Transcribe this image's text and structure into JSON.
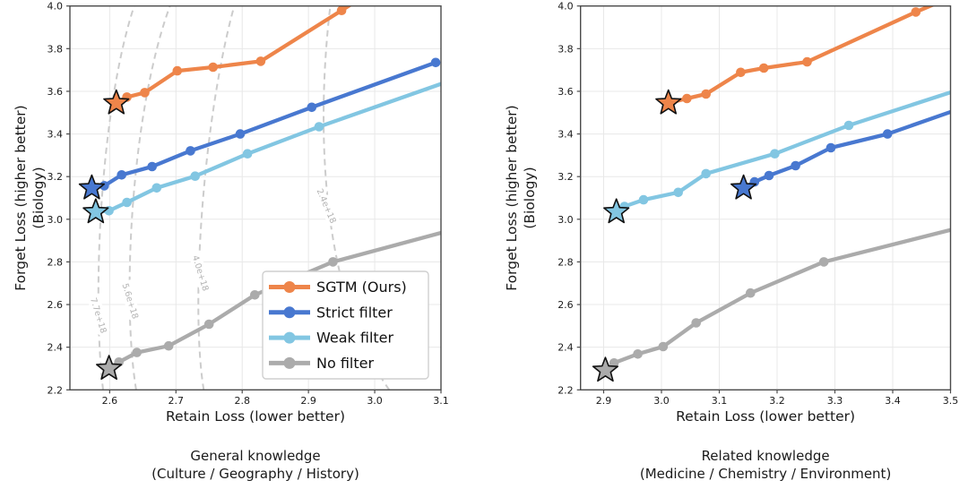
{
  "colors": {
    "sgtm": "#EE854A",
    "strict": "#4878D0",
    "weak": "#82C6E2",
    "nofilter": "#ABABAB",
    "grid": "#E8E8E8",
    "spine": "#4A4A4A",
    "contour_line": "#CCCCCC",
    "contour_label": "#B3B3B3",
    "text": "#1A1A1A",
    "star_edge": "#111111",
    "legend_border": "#CFCFCF",
    "background": "#FFFFFF"
  },
  "legend": {
    "position": "lower right of left chart",
    "items": [
      "SGTM (Ours)",
      "Strict filter",
      "Weak filter",
      "No filter"
    ]
  },
  "chart_data": [
    {
      "type": "line",
      "panel": "left",
      "xlabel": "Retain Loss (lower better)",
      "ylabel": [
        "Forget Loss (higher better)",
        "(Biology)"
      ],
      "caption": [
        "General knowledge",
        "(Culture / Geography / History)"
      ],
      "xlim": [
        2.54,
        3.1
      ],
      "ylim": [
        2.2,
        4.0
      ],
      "xticks": [
        2.6,
        2.7,
        2.8,
        2.9,
        3.0,
        3.1
      ],
      "xtick_labels": [
        "2.6",
        "2.7",
        "2.8",
        "2.9",
        "3.0",
        "3.1"
      ],
      "yticks": [
        2.2,
        2.4,
        2.6,
        2.8,
        3.0,
        3.2,
        3.4,
        3.6,
        3.8,
        4.0
      ],
      "ytick_labels": [
        "2.2",
        "2.4",
        "2.6",
        "2.8",
        "3.0",
        "3.2",
        "3.4",
        "3.6",
        "3.8",
        "4.0"
      ],
      "grid": true,
      "show_legend": true,
      "series": [
        {
          "name": "SGTM (Ours)",
          "color_key": "sgtm",
          "star": [
            2.61,
            3.545
          ],
          "points": [
            [
              2.61,
              3.545
            ],
            [
              2.626,
              3.573
            ],
            [
              2.653,
              3.594
            ],
            [
              2.702,
              3.696
            ],
            [
              2.756,
              3.713
            ],
            [
              2.828,
              3.741
            ],
            [
              2.95,
              3.979
            ],
            [
              3.0,
              4.08
            ]
          ]
        },
        {
          "name": "Strict filter",
          "color_key": "strict",
          "star": [
            2.573,
            3.146
          ],
          "points": [
            [
              2.573,
              3.146
            ],
            [
              2.592,
              3.157
            ],
            [
              2.618,
              3.208
            ],
            [
              2.664,
              3.247
            ],
            [
              2.722,
              3.321
            ],
            [
              2.797,
              3.4
            ],
            [
              2.905,
              3.525
            ],
            [
              3.092,
              3.735
            ]
          ]
        },
        {
          "name": "Weak filter",
          "color_key": "weak",
          "star": [
            2.579,
            3.034
          ],
          "points": [
            [
              2.579,
              3.034
            ],
            [
              2.599,
              3.04
            ],
            [
              2.626,
              3.079
            ],
            [
              2.671,
              3.147
            ],
            [
              2.729,
              3.202
            ],
            [
              2.808,
              3.307
            ],
            [
              2.916,
              3.434
            ],
            [
              3.16,
              3.7
            ]
          ]
        },
        {
          "name": "No filter",
          "color_key": "nofilter",
          "star": [
            2.599,
            2.3
          ],
          "points": [
            [
              2.599,
              2.3
            ],
            [
              2.614,
              2.33
            ],
            [
              2.641,
              2.375
            ],
            [
              2.689,
              2.406
            ],
            [
              2.75,
              2.508
            ],
            [
              2.819,
              2.645
            ],
            [
              2.937,
              2.8
            ],
            [
              3.16,
              2.986
            ]
          ]
        }
      ],
      "contours": [
        {
          "label": "7.7e+18",
          "label_pos": [
            2.583,
            2.549
          ],
          "label_rotation_deg": 73,
          "bezier": [
            [
              2.59,
              2.2
            ],
            [
              2.573,
              2.64
            ],
            [
              2.586,
              3.52
            ],
            [
              2.637,
              4.0
            ]
          ]
        },
        {
          "label": "5.6e+18",
          "label_pos": [
            2.631,
            2.616
          ],
          "label_rotation_deg": 73,
          "bezier": [
            [
              2.64,
              2.2
            ],
            [
              2.617,
              2.64
            ],
            [
              2.634,
              3.52
            ],
            [
              2.691,
              4.0
            ]
          ]
        },
        {
          "label": "4.0e+18",
          "label_pos": [
            2.737,
            2.747
          ],
          "label_rotation_deg": 73,
          "bezier": [
            [
              2.742,
              2.2
            ],
            [
              2.721,
              2.6
            ],
            [
              2.742,
              3.48
            ],
            [
              2.788,
              4.0
            ]
          ]
        },
        {
          "label": "2.4e+18",
          "label_pos": [
            2.927,
            3.062
          ],
          "label_rotation_deg": 67,
          "bezier": [
            [
              3.022,
              2.2
            ],
            [
              2.921,
              2.64
            ],
            [
              2.91,
              3.4
            ],
            [
              2.933,
              4.0
            ]
          ]
        }
      ]
    },
    {
      "type": "line",
      "panel": "right",
      "xlabel": "Retain Loss (lower better)",
      "ylabel": [
        "Forget Loss (higher better)",
        "(Biology)"
      ],
      "caption": [
        "Related knowledge",
        "(Medicine / Chemistry / Environment)"
      ],
      "xlim": [
        2.86,
        3.5
      ],
      "ylim": [
        2.2,
        4.0
      ],
      "xticks": [
        2.9,
        3.0,
        3.1,
        3.2,
        3.3,
        3.4,
        3.5
      ],
      "xtick_labels": [
        "2.9",
        "3.0",
        "3.1",
        "3.2",
        "3.3",
        "3.4",
        "3.5"
      ],
      "yticks": [
        2.2,
        2.4,
        2.6,
        2.8,
        3.0,
        3.2,
        3.4,
        3.6,
        3.8,
        4.0
      ],
      "ytick_labels": [
        "2.2",
        "2.4",
        "2.6",
        "2.8",
        "3.0",
        "3.2",
        "3.4",
        "3.6",
        "3.8",
        "4.0"
      ],
      "grid": true,
      "show_legend": false,
      "series": [
        {
          "name": "SGTM (Ours)",
          "color_key": "sgtm",
          "star": [
            3.012,
            3.545
          ],
          "points": [
            [
              3.012,
              3.545
            ],
            [
              3.044,
              3.566
            ],
            [
              3.077,
              3.587
            ],
            [
              3.137,
              3.689
            ],
            [
              3.177,
              3.709
            ],
            [
              3.252,
              3.738
            ],
            [
              3.44,
              3.972
            ],
            [
              3.495,
              4.035
            ]
          ]
        },
        {
          "name": "Strict filter",
          "color_key": "strict",
          "star": [
            3.142,
            3.146
          ],
          "points": [
            [
              3.142,
              3.146
            ],
            [
              3.161,
              3.175
            ],
            [
              3.186,
              3.205
            ],
            [
              3.232,
              3.251
            ],
            [
              3.293,
              3.335
            ],
            [
              3.391,
              3.4
            ],
            [
              3.56,
              3.56
            ]
          ]
        },
        {
          "name": "Weak filter",
          "color_key": "weak",
          "star": [
            2.922,
            3.034
          ],
          "points": [
            [
              2.922,
              3.034
            ],
            [
              2.936,
              3.06
            ],
            [
              2.969,
              3.091
            ],
            [
              3.029,
              3.126
            ],
            [
              3.077,
              3.214
            ],
            [
              3.196,
              3.307
            ],
            [
              3.324,
              3.44
            ],
            [
              3.56,
              3.648
            ]
          ]
        },
        {
          "name": "No filter",
          "color_key": "nofilter",
          "star": [
            2.903,
            2.291
          ],
          "points": [
            [
              2.903,
              2.291
            ],
            [
              2.918,
              2.326
            ],
            [
              2.959,
              2.368
            ],
            [
              3.003,
              2.403
            ],
            [
              3.06,
              2.514
            ],
            [
              3.154,
              2.654
            ],
            [
              3.281,
              2.8
            ],
            [
              3.56,
              2.991
            ]
          ]
        }
      ],
      "contours": []
    }
  ]
}
